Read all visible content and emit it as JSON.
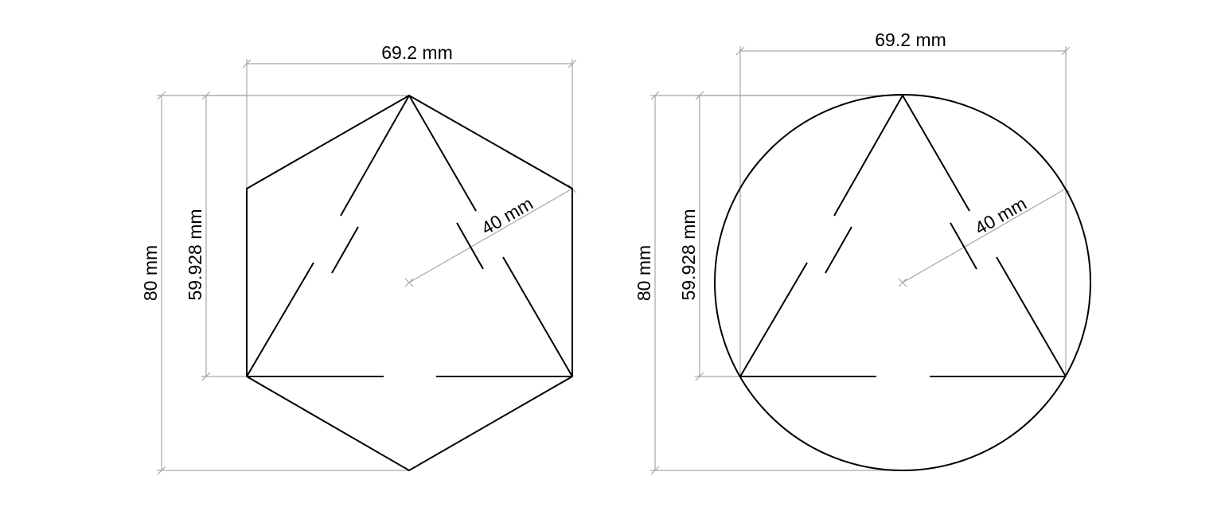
{
  "colors": {
    "outline": "#000000",
    "dimension_line": "#a6a6a6",
    "background": "#ffffff"
  },
  "figures": [
    {
      "outer_shape": "hexagon",
      "width_label": "69.2 mm",
      "total_height_label": "80 mm",
      "triangle_height_label": "59.928 mm",
      "radius_label": "40 mm"
    },
    {
      "outer_shape": "circle",
      "width_label": "69.2 mm",
      "total_height_label": "80 mm",
      "triangle_height_label": "59.928 mm",
      "radius_label": "40 mm"
    }
  ]
}
